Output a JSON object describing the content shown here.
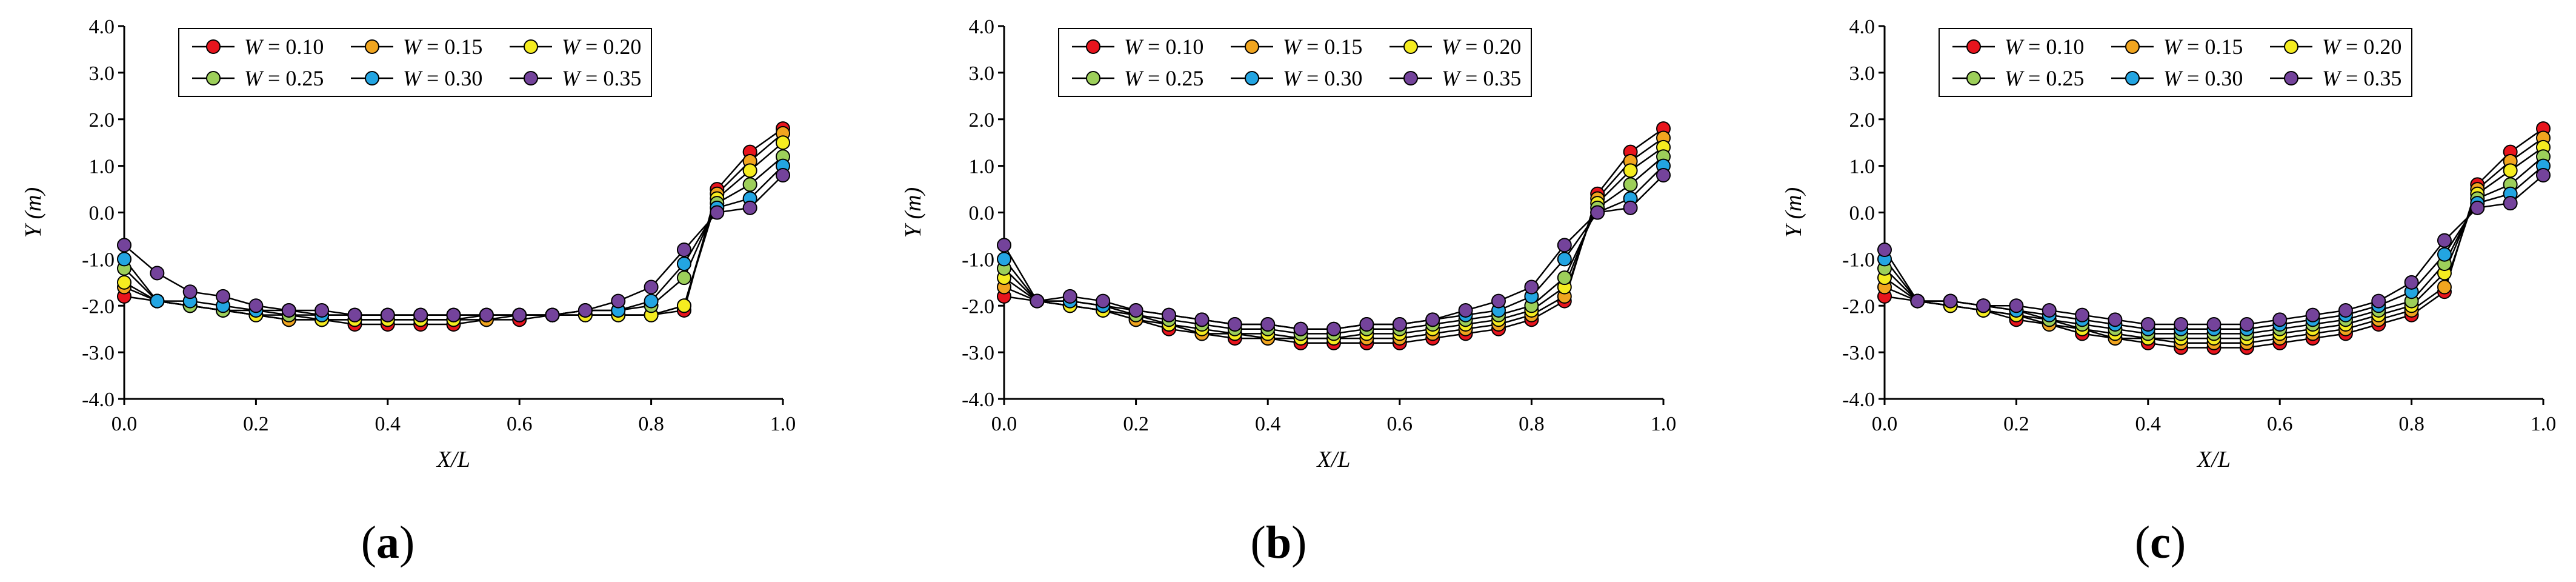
{
  "panels": [
    {
      "caption": {
        "open": "(",
        "letter": "a",
        "close": ")"
      }
    },
    {
      "caption": {
        "open": "(",
        "letter": "b",
        "close": ")"
      }
    },
    {
      "caption": {
        "open": "(",
        "letter": "c",
        "close": ")"
      }
    }
  ],
  "legend_prefix": "W",
  "legend_eq": " = ",
  "chart_data": [
    {
      "type": "line",
      "title": "",
      "xlabel": "X/L",
      "ylabel": "Y (m)",
      "xlim": [
        0.0,
        1.0
      ],
      "ylim": [
        -4.0,
        4.0
      ],
      "xticks": [
        "0.0",
        "0.2",
        "0.4",
        "0.6",
        "0.8",
        "1.0"
      ],
      "yticks": [
        "-4.0",
        "-3.0",
        "-2.0",
        "-1.0",
        "0.0",
        "1.0",
        "2.0",
        "3.0",
        "4.0"
      ],
      "x": [
        0,
        0.05,
        0.1,
        0.15,
        0.2,
        0.25,
        0.3,
        0.35,
        0.4,
        0.45,
        0.5,
        0.55,
        0.6,
        0.65,
        0.7,
        0.75,
        0.8,
        0.85,
        0.9,
        0.95,
        1.0
      ],
      "series": [
        {
          "name": "0.10",
          "color": "#e8141d",
          "values": [
            -1.8,
            -1.9,
            -2.0,
            -2.1,
            -2.2,
            -2.3,
            -2.3,
            -2.4,
            -2.4,
            -2.4,
            -2.4,
            -2.3,
            -2.3,
            -2.2,
            -2.2,
            -2.2,
            -2.2,
            -2.1,
            0.5,
            1.3,
            1.8
          ]
        },
        {
          "name": "0.15",
          "color": "#f1a51f",
          "values": [
            -1.6,
            -1.9,
            -2.0,
            -2.1,
            -2.2,
            -2.3,
            -2.3,
            -2.3,
            -2.3,
            -2.3,
            -2.3,
            -2.3,
            -2.2,
            -2.2,
            -2.2,
            -2.2,
            -2.2,
            -2.0,
            0.4,
            1.1,
            1.7
          ]
        },
        {
          "name": "0.20",
          "color": "#f5ec20",
          "values": [
            -1.5,
            -1.9,
            -2.0,
            -2.1,
            -2.2,
            -2.2,
            -2.3,
            -2.3,
            -2.3,
            -2.3,
            -2.3,
            -2.2,
            -2.2,
            -2.2,
            -2.2,
            -2.2,
            -2.2,
            -2.0,
            0.3,
            0.9,
            1.5
          ]
        },
        {
          "name": "0.25",
          "color": "#9dcf5a",
          "values": [
            -1.2,
            -1.9,
            -2.0,
            -2.1,
            -2.1,
            -2.2,
            -2.2,
            -2.2,
            -2.2,
            -2.2,
            -2.2,
            -2.2,
            -2.2,
            -2.2,
            -2.1,
            -2.1,
            -2.0,
            -1.4,
            0.2,
            0.6,
            1.2
          ]
        },
        {
          "name": "0.30",
          "color": "#23a5e2",
          "values": [
            -1.0,
            -1.9,
            -1.9,
            -2.0,
            -2.1,
            -2.1,
            -2.2,
            -2.2,
            -2.2,
            -2.2,
            -2.2,
            -2.2,
            -2.2,
            -2.2,
            -2.1,
            -2.1,
            -1.9,
            -1.1,
            0.1,
            0.3,
            1.0
          ]
        },
        {
          "name": "0.35",
          "color": "#74439b",
          "values": [
            -0.7,
            -1.3,
            -1.7,
            -1.8,
            -2.0,
            -2.1,
            -2.1,
            -2.2,
            -2.2,
            -2.2,
            -2.2,
            -2.2,
            -2.2,
            -2.2,
            -2.1,
            -1.9,
            -1.6,
            -0.8,
            0.0,
            0.1,
            0.8
          ]
        }
      ]
    },
    {
      "type": "line",
      "title": "",
      "xlabel": "X/L",
      "ylabel": "Y (m)",
      "xlim": [
        0.0,
        1.0
      ],
      "ylim": [
        -4.0,
        4.0
      ],
      "xticks": [
        "0.0",
        "0.2",
        "0.4",
        "0.6",
        "0.8",
        "1.0"
      ],
      "yticks": [
        "-4.0",
        "-3.0",
        "-2.0",
        "-1.0",
        "0.0",
        "1.0",
        "2.0",
        "3.0",
        "4.0"
      ],
      "x": [
        0,
        0.05,
        0.1,
        0.15,
        0.2,
        0.25,
        0.3,
        0.35,
        0.4,
        0.45,
        0.5,
        0.55,
        0.6,
        0.65,
        0.7,
        0.75,
        0.8,
        0.85,
        0.9,
        0.95,
        1.0
      ],
      "series": [
        {
          "name": "0.10",
          "color": "#e8141d",
          "values": [
            -1.8,
            -1.9,
            -2.0,
            -2.1,
            -2.3,
            -2.5,
            -2.6,
            -2.7,
            -2.7,
            -2.8,
            -2.8,
            -2.8,
            -2.8,
            -2.7,
            -2.6,
            -2.5,
            -2.3,
            -1.9,
            0.4,
            1.3,
            1.8
          ]
        },
        {
          "name": "0.15",
          "color": "#f1a51f",
          "values": [
            -1.6,
            -1.9,
            -2.0,
            -2.1,
            -2.3,
            -2.4,
            -2.6,
            -2.6,
            -2.7,
            -2.7,
            -2.7,
            -2.7,
            -2.7,
            -2.6,
            -2.5,
            -2.4,
            -2.2,
            -1.8,
            0.3,
            1.1,
            1.6
          ]
        },
        {
          "name": "0.20",
          "color": "#f5ec20",
          "values": [
            -1.4,
            -1.9,
            -2.0,
            -2.1,
            -2.2,
            -2.4,
            -2.5,
            -2.6,
            -2.6,
            -2.7,
            -2.7,
            -2.6,
            -2.6,
            -2.5,
            -2.4,
            -2.3,
            -2.1,
            -1.6,
            0.2,
            0.9,
            1.4
          ]
        },
        {
          "name": "0.25",
          "color": "#9dcf5a",
          "values": [
            -1.2,
            -1.9,
            -1.9,
            -2.0,
            -2.2,
            -2.3,
            -2.4,
            -2.5,
            -2.5,
            -2.6,
            -2.6,
            -2.5,
            -2.5,
            -2.4,
            -2.3,
            -2.2,
            -2.0,
            -1.4,
            0.1,
            0.6,
            1.2
          ]
        },
        {
          "name": "0.30",
          "color": "#23a5e2",
          "values": [
            -1.0,
            -1.9,
            -1.9,
            -2.0,
            -2.1,
            -2.2,
            -2.3,
            -2.4,
            -2.4,
            -2.5,
            -2.5,
            -2.4,
            -2.4,
            -2.3,
            -2.2,
            -2.1,
            -1.8,
            -1.0,
            0.0,
            0.3,
            1.0
          ]
        },
        {
          "name": "0.35",
          "color": "#74439b",
          "values": [
            -0.7,
            -1.9,
            -1.8,
            -1.9,
            -2.1,
            -2.2,
            -2.3,
            -2.4,
            -2.4,
            -2.5,
            -2.5,
            -2.4,
            -2.4,
            -2.3,
            -2.1,
            -1.9,
            -1.6,
            -0.7,
            0.0,
            0.1,
            0.8
          ]
        }
      ]
    },
    {
      "type": "line",
      "title": "",
      "xlabel": "X/L",
      "ylabel": "Y (m)",
      "xlim": [
        0.0,
        1.0
      ],
      "ylim": [
        -4.0,
        4.0
      ],
      "xticks": [
        "0.0",
        "0.2",
        "0.4",
        "0.6",
        "0.8",
        "1.0"
      ],
      "yticks": [
        "-4.0",
        "-3.0",
        "-2.0",
        "-1.0",
        "0.0",
        "1.0",
        "2.0",
        "3.0",
        "4.0"
      ],
      "x": [
        0,
        0.05,
        0.1,
        0.15,
        0.2,
        0.25,
        0.3,
        0.35,
        0.4,
        0.45,
        0.5,
        0.55,
        0.6,
        0.65,
        0.7,
        0.75,
        0.8,
        0.85,
        0.9,
        0.95,
        1.0
      ],
      "series": [
        {
          "name": "0.10",
          "color": "#e8141d",
          "values": [
            -1.8,
            -1.9,
            -2.0,
            -2.1,
            -2.3,
            -2.4,
            -2.6,
            -2.7,
            -2.8,
            -2.9,
            -2.9,
            -2.9,
            -2.8,
            -2.7,
            -2.6,
            -2.4,
            -2.2,
            -1.7,
            0.6,
            1.3,
            1.8
          ]
        },
        {
          "name": "0.15",
          "color": "#f1a51f",
          "values": [
            -1.6,
            -1.9,
            -2.0,
            -2.1,
            -2.2,
            -2.4,
            -2.5,
            -2.7,
            -2.7,
            -2.8,
            -2.8,
            -2.8,
            -2.7,
            -2.6,
            -2.5,
            -2.3,
            -2.1,
            -1.6,
            0.5,
            1.1,
            1.6
          ]
        },
        {
          "name": "0.20",
          "color": "#f5ec20",
          "values": [
            -1.4,
            -1.9,
            -2.0,
            -2.1,
            -2.2,
            -2.3,
            -2.5,
            -2.6,
            -2.7,
            -2.7,
            -2.7,
            -2.7,
            -2.6,
            -2.5,
            -2.4,
            -2.2,
            -2.0,
            -1.3,
            0.4,
            0.9,
            1.4
          ]
        },
        {
          "name": "0.25",
          "color": "#9dcf5a",
          "values": [
            -1.2,
            -1.9,
            -1.9,
            -2.0,
            -2.1,
            -2.3,
            -2.4,
            -2.5,
            -2.6,
            -2.6,
            -2.6,
            -2.6,
            -2.5,
            -2.4,
            -2.3,
            -2.1,
            -1.9,
            -1.1,
            0.3,
            0.6,
            1.2
          ]
        },
        {
          "name": "0.30",
          "color": "#23a5e2",
          "values": [
            -1.0,
            -1.9,
            -1.9,
            -2.0,
            -2.1,
            -2.2,
            -2.3,
            -2.4,
            -2.5,
            -2.5,
            -2.5,
            -2.5,
            -2.4,
            -2.3,
            -2.2,
            -2.0,
            -1.7,
            -0.9,
            0.2,
            0.4,
            1.0
          ]
        },
        {
          "name": "0.35",
          "color": "#74439b",
          "values": [
            -0.8,
            -1.9,
            -1.9,
            -2.0,
            -2.0,
            -2.1,
            -2.2,
            -2.3,
            -2.4,
            -2.4,
            -2.4,
            -2.4,
            -2.3,
            -2.2,
            -2.1,
            -1.9,
            -1.5,
            -0.6,
            0.1,
            0.2,
            0.8
          ]
        }
      ]
    }
  ]
}
